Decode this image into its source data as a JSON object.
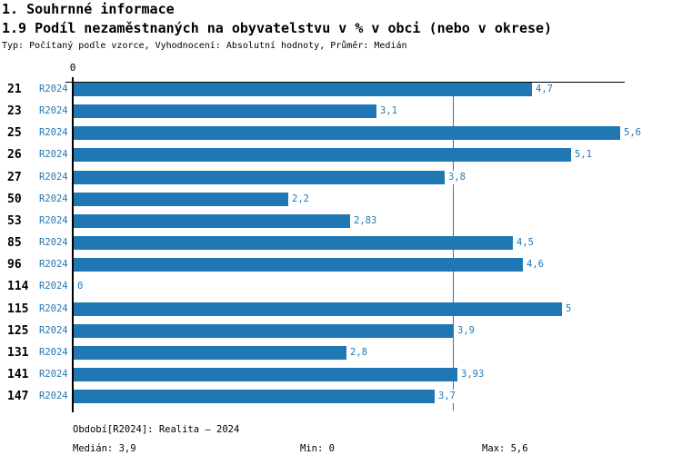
{
  "header": {
    "title1": "1. Souhrnné informace",
    "title2": "1.9 Podíl nezaměstnaných na obyvatelstvu v % v obci (nebo v okrese)",
    "meta": "Typ: Počítaný podle vzorce, Vyhodnocení: Absolutní hodnoty, Průměr: Medián"
  },
  "chart_data": {
    "type": "bar",
    "orientation": "horizontal",
    "title": "1.9 Podíl nezaměstnaných na obyvatelstvu v % v obci (nebo v okrese)",
    "categories": [
      "21",
      "23",
      "25",
      "26",
      "27",
      "50",
      "53",
      "85",
      "96",
      "114",
      "115",
      "125",
      "131",
      "141",
      "147"
    ],
    "period_label": "R2024",
    "values": [
      4.7,
      3.1,
      5.6,
      5.1,
      3.8,
      2.2,
      2.83,
      4.5,
      4.6,
      0,
      5,
      3.9,
      2.8,
      3.93,
      3.7
    ],
    "value_labels": [
      "4,7",
      "3,1",
      "5,6",
      "5,1",
      "3,8",
      "2,2",
      "2,83",
      "4,5",
      "4,6",
      "0",
      "5",
      "3,9",
      "2,8",
      "3,93",
      "3,7"
    ],
    "xlim": [
      0,
      5.66
    ],
    "axis_zero_label": "0",
    "median_line_value": 3.9,
    "grid": "off",
    "bar_color": "#1f77b4",
    "median_line_color": "#1f77b4",
    "label_color": "#1f77b4",
    "category_color": "#000000"
  },
  "footer": {
    "period": "Období[R2024]: Realita – 2024",
    "median": "Medián: 3,9",
    "min": "Min: 0",
    "max": "Max: 5,6"
  }
}
